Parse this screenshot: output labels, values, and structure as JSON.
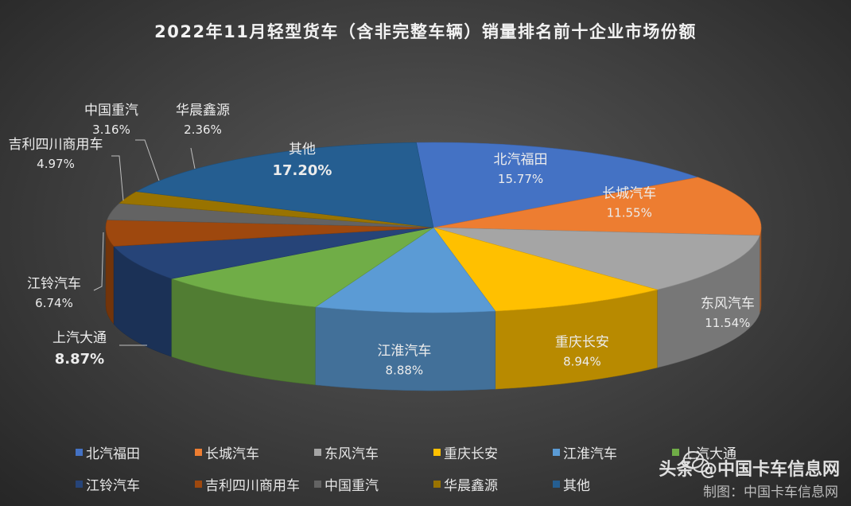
{
  "chart_data": {
    "type": "pie",
    "title": "2022年11月轻型货车（含非完整车辆）销量排名前十企业市场份额",
    "unit": "%",
    "slices": [
      {
        "label": "北汽福田",
        "value": 15.77,
        "display": "15.77%",
        "color": "#4472c4"
      },
      {
        "label": "长城汽车",
        "value": 11.55,
        "display": "11.55%",
        "color": "#ed7d31"
      },
      {
        "label": "东风汽车",
        "value": 11.54,
        "display": "11.54%",
        "color": "#a5a5a5"
      },
      {
        "label": "重庆长安",
        "value": 8.94,
        "display": "8.94%",
        "color": "#ffc000"
      },
      {
        "label": "江淮汽车",
        "value": 8.88,
        "display": "8.88%",
        "color": "#5b9bd5"
      },
      {
        "label": "上汽大通",
        "value": 8.87,
        "display": "8.87%",
        "color": "#70ad47"
      },
      {
        "label": "江铃汽车",
        "value": 6.74,
        "display": "6.74%",
        "color": "#264478"
      },
      {
        "label": "吉利四川商用车",
        "value": 4.97,
        "display": "4.97%",
        "color": "#9e480e"
      },
      {
        "label": "中国重汽",
        "value": 3.16,
        "display": "3.16%",
        "color": "#636363"
      },
      {
        "label": "华晨鑫源",
        "value": 2.36,
        "display": "2.36%",
        "color": "#997300"
      },
      {
        "label": "其他",
        "value": 17.2,
        "display": "17.20%",
        "color": "#255e91"
      }
    ],
    "legend_position": "bottom"
  },
  "watermark": {
    "line1": "头条 @中国卡车信息网",
    "line1_partial": "卡车信息网",
    "line2": "制图：中国卡车信息网"
  }
}
